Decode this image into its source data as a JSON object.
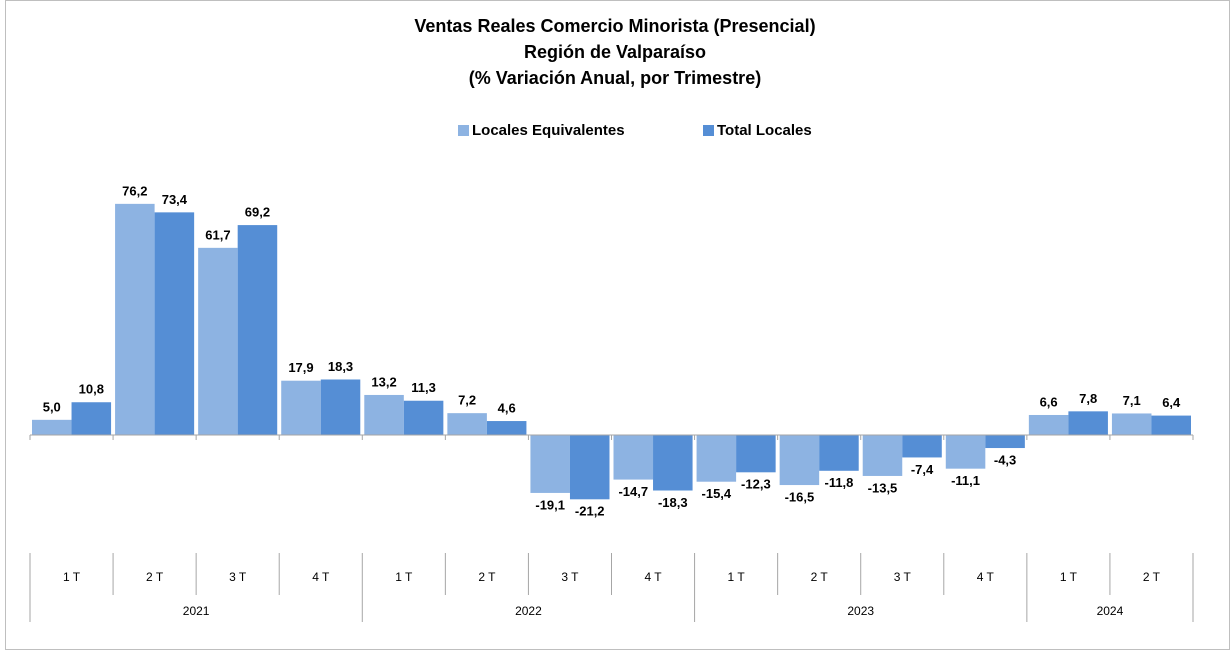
{
  "chart_data": {
    "type": "bar",
    "title_lines": [
      "Ventas Reales Comercio Minorista (Presencial)",
      "Región de Valparaíso",
      "(% Variación Anual, por Trimestre)"
    ],
    "categories": [
      "1 T",
      "2 T",
      "3 T",
      "4 T",
      "1 T",
      "2 T",
      "3 T",
      "4 T",
      "1 T",
      "2 T",
      "3 T",
      "4 T",
      "1 T",
      "2 T"
    ],
    "category_groups": [
      {
        "label": "2021",
        "size": 4
      },
      {
        "label": "2022",
        "size": 4
      },
      {
        "label": "2023",
        "size": 4
      },
      {
        "label": "2024",
        "size": 2
      }
    ],
    "series": [
      {
        "name": "Locales Equivalentes",
        "color": "#8db3e2",
        "values": [
          5.0,
          76.2,
          61.7,
          17.9,
          13.2,
          7.2,
          -19.1,
          -14.7,
          -15.4,
          -16.5,
          -13.5,
          -11.1,
          6.6,
          7.1
        ],
        "value_labels": [
          "5,0",
          "76,2",
          "61,7",
          "17,9",
          "13,2",
          "7,2",
          "-19,1",
          "-14,7",
          "-15,4",
          "-16,5",
          "-13,5",
          "-11,1",
          "6,6",
          "7,1"
        ]
      },
      {
        "name": "Total Locales",
        "color": "#558ed5",
        "values": [
          10.8,
          73.4,
          69.2,
          18.3,
          11.3,
          4.6,
          -21.2,
          -18.3,
          -12.3,
          -11.8,
          -7.4,
          -4.3,
          7.8,
          6.4
        ],
        "value_labels": [
          "10,8",
          "73,4",
          "69,2",
          "18,3",
          "11,3",
          "4,6",
          "-21,2",
          "-18,3",
          "-12,3",
          "-11,8",
          "-7,4",
          "-4,3",
          "7,8",
          "6,4"
        ]
      }
    ],
    "ylim": [
      -30,
      90
    ],
    "legend": "top"
  }
}
